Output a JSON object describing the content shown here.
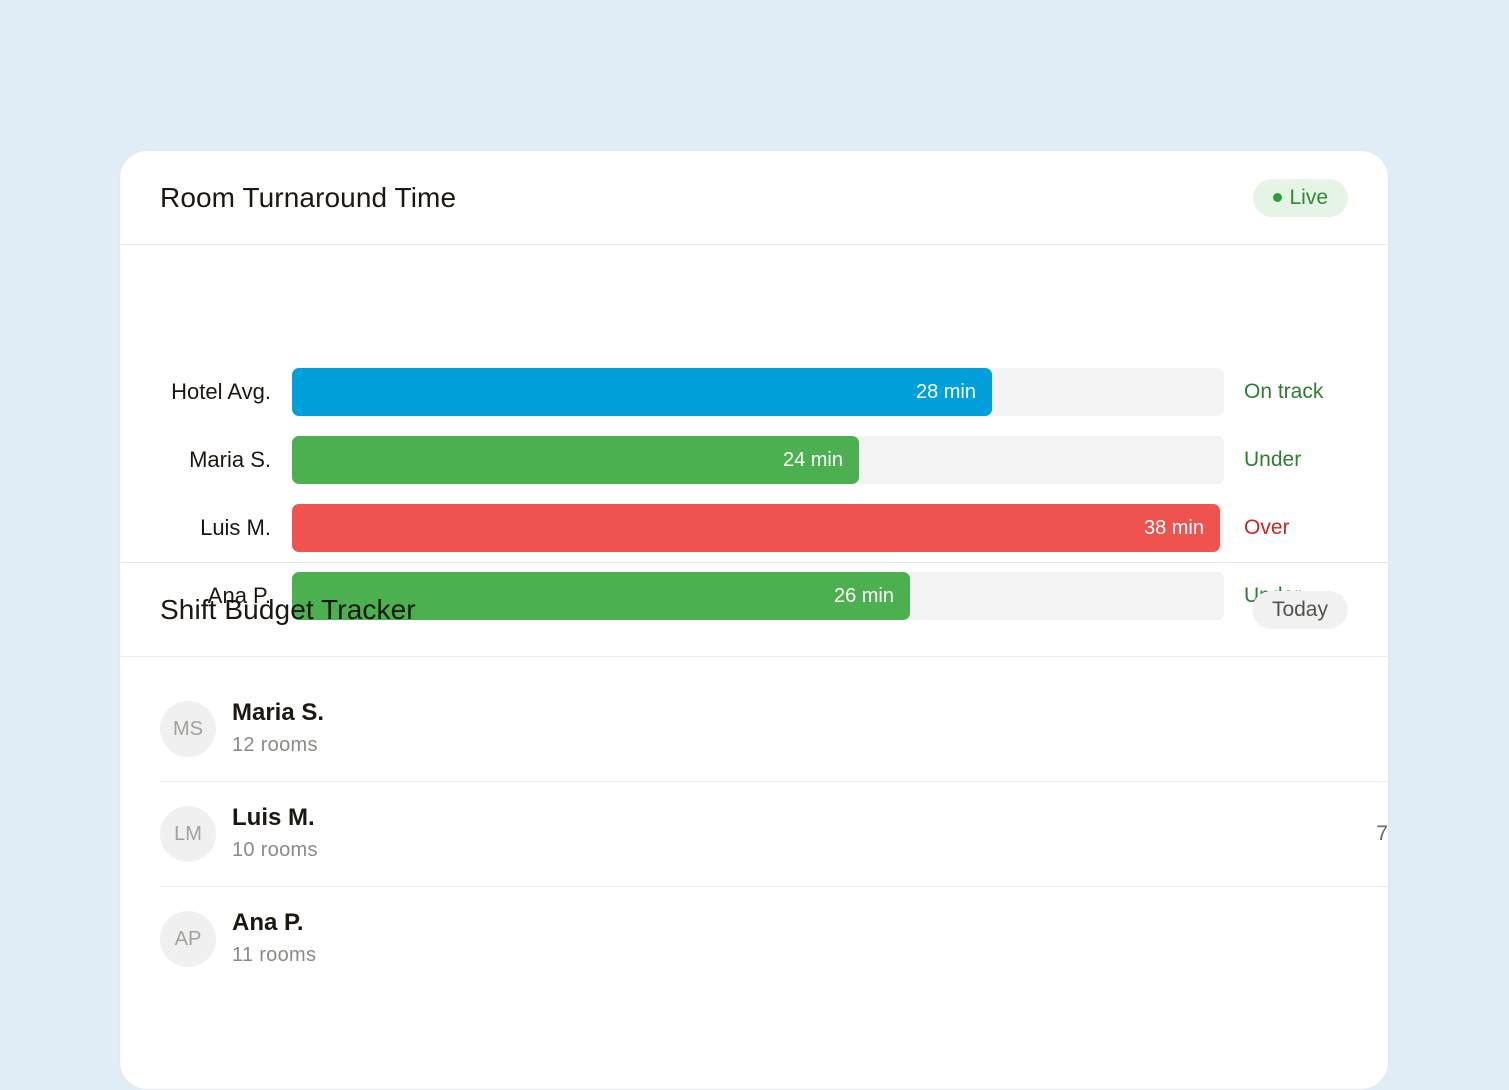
{
  "turnaround": {
    "title": "Room Turnaround Time",
    "badge": "Live",
    "rows": [
      {
        "label": "Hotel Avg.",
        "value_text": "28 min",
        "minutes": 28,
        "fill_fraction": 0.751,
        "color": "#00a0dc",
        "status": "On track",
        "status_color": "#2e7d32"
      },
      {
        "label": "Maria S.",
        "value_text": "24 min",
        "minutes": 24,
        "fill_fraction": 0.608,
        "color": "#4caf50",
        "status": "Under",
        "status_color": "#2e7d32"
      },
      {
        "label": "Luis M.",
        "value_text": "38 min",
        "minutes": 38,
        "fill_fraction": 0.996,
        "color": "#ef5350",
        "status": "Over",
        "status_color": "#c62828"
      },
      {
        "label": "Ana P.",
        "value_text": "26 min",
        "minutes": 26,
        "fill_fraction": 0.663,
        "color": "#4caf50",
        "status": "Under",
        "status_color": "#2e7d32"
      }
    ]
  },
  "budget": {
    "title": "Shift Budget Tracker",
    "badge": "Today",
    "people": [
      {
        "initials": "MS",
        "name": "Maria S.",
        "rooms": "12 rooms"
      },
      {
        "initials": "LM",
        "name": "Luis M.",
        "rooms": "10 rooms",
        "edge_value": "7"
      },
      {
        "initials": "AP",
        "name": "Ana P.",
        "rooms": "11 rooms"
      }
    ]
  }
}
